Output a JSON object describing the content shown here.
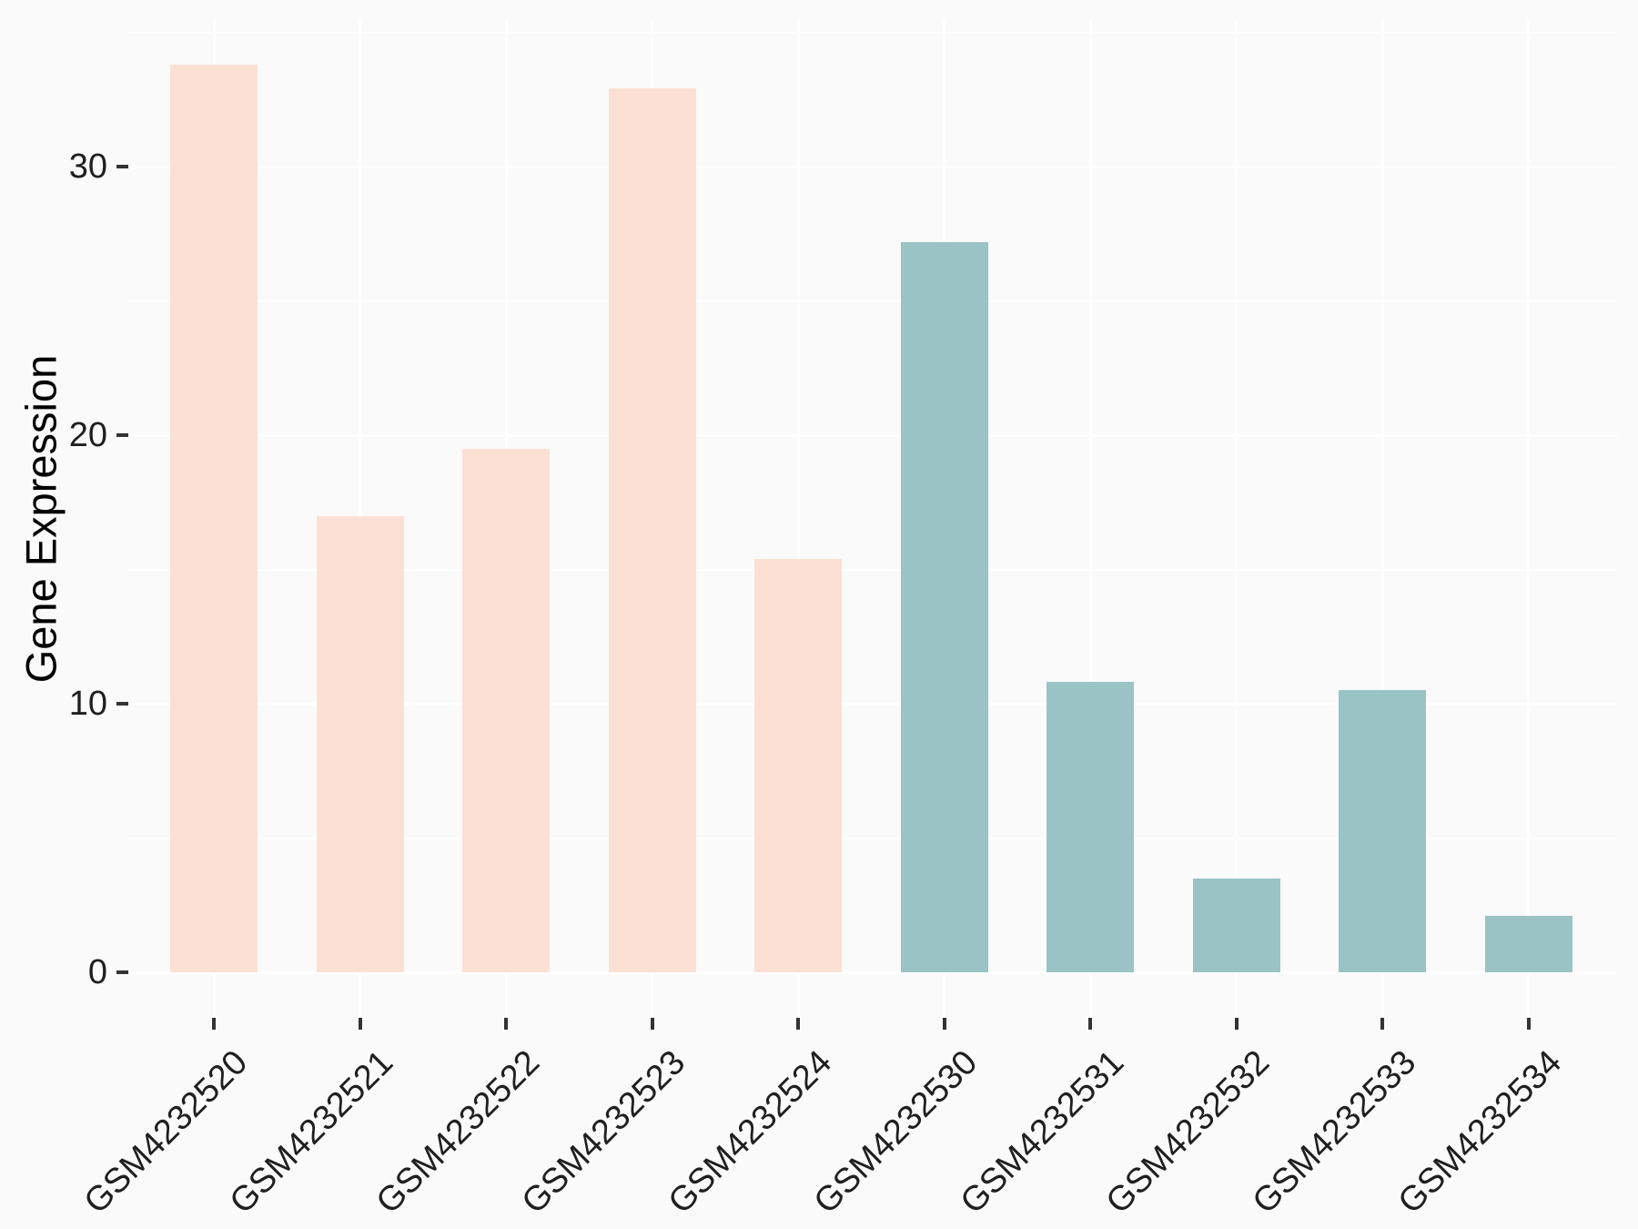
{
  "chart_data": {
    "type": "bar",
    "title": "",
    "xlabel": "",
    "ylabel": "Gene Expression",
    "categories": [
      "GSM4232520",
      "GSM4232521",
      "GSM4232522",
      "GSM4232523",
      "GSM4232524",
      "GSM4232530",
      "GSM4232531",
      "GSM4232532",
      "GSM4232533",
      "GSM4232534"
    ],
    "values": [
      33.8,
      17.0,
      19.5,
      32.9,
      15.4,
      27.2,
      10.8,
      3.5,
      10.5,
      2.1
    ],
    "bar_colors": [
      "#FCE0D4",
      "#FCE0D4",
      "#FCE0D4",
      "#FCE0D4",
      "#FCE0D4",
      "#9AC3C6",
      "#9AC3C6",
      "#9AC3C6",
      "#9AC3C6",
      "#9AC3C6"
    ],
    "groups": [
      {
        "name": "GSM4232520-GSM4232524",
        "color": "#FCE0D4"
      },
      {
        "name": "GSM4232530-GSM4232534",
        "color": "#9AC3C6"
      }
    ],
    "yticks": [
      0,
      10,
      20,
      30
    ],
    "yticks_minor": [
      5,
      15,
      25,
      35
    ],
    "ylim": [
      -1.7,
      35.5
    ],
    "legend": "none",
    "grid": {
      "horizontal": "white major and minor",
      "vertical": "white major at category centers",
      "panel_background": "#FAFAFA"
    }
  },
  "colors": {
    "background": "#FAFAFA",
    "gridline": "#FFFFFF",
    "tick_mark": "#333333",
    "tick_label": "#1F1F1F",
    "axis_title": "#000000",
    "peach_bar": "#FCE0D4",
    "teal_bar": "#9AC3C6"
  }
}
